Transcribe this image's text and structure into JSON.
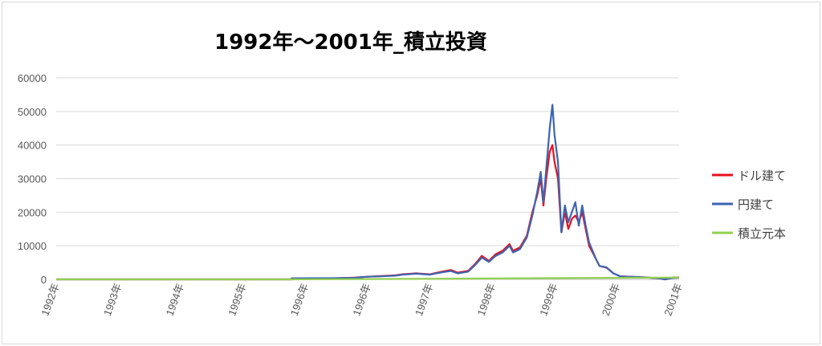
{
  "chart_data": {
    "type": "line",
    "title": "1992年～2001年_積立投資",
    "xlabel": "",
    "ylabel": "",
    "ylim": [
      0,
      60000
    ],
    "yticks": [
      "0",
      "10000",
      "20000",
      "30000",
      "40000",
      "50000",
      "60000"
    ],
    "xticks": [
      "1992年",
      "1993年",
      "1994年",
      "1995年",
      "1996年",
      "1996年",
      "1997年",
      "1998年",
      "1999年",
      "2000年",
      "2001年"
    ],
    "grid": true,
    "legend_position": "right",
    "x_unit": "year (1992.0 = first tick, 2001.0 = last tick)",
    "series": [
      {
        "name": "ドル建て",
        "color": "#e8101e",
        "points": [
          [
            1992.0,
            0
          ],
          [
            1995.4,
            0
          ],
          [
            1995.4,
            250
          ],
          [
            1996.0,
            300
          ],
          [
            1996.3,
            500
          ],
          [
            1996.5,
            800
          ],
          [
            1996.7,
            1000
          ],
          [
            1996.9,
            1200
          ],
          [
            1997.0,
            1500
          ],
          [
            1997.2,
            1800
          ],
          [
            1997.4,
            1500
          ],
          [
            1997.55,
            2200
          ],
          [
            1997.7,
            2800
          ],
          [
            1997.8,
            2000
          ],
          [
            1997.95,
            2500
          ],
          [
            1998.05,
            4500
          ],
          [
            1998.15,
            7000
          ],
          [
            1998.25,
            5500
          ],
          [
            1998.35,
            7500
          ],
          [
            1998.45,
            8500
          ],
          [
            1998.55,
            10500
          ],
          [
            1998.6,
            8500
          ],
          [
            1998.7,
            9500
          ],
          [
            1998.8,
            13000
          ],
          [
            1998.88,
            20000
          ],
          [
            1998.95,
            25000
          ],
          [
            1999.0,
            30000
          ],
          [
            1999.04,
            22000
          ],
          [
            1999.08,
            30000
          ],
          [
            1999.13,
            38000
          ],
          [
            1999.17,
            40000
          ],
          [
            1999.2,
            35000
          ],
          [
            1999.25,
            30000
          ],
          [
            1999.3,
            14000
          ],
          [
            1999.35,
            20000
          ],
          [
            1999.4,
            15000
          ],
          [
            1999.45,
            18000
          ],
          [
            1999.5,
            19000
          ],
          [
            1999.55,
            17000
          ],
          [
            1999.6,
            20000
          ],
          [
            1999.65,
            15000
          ],
          [
            1999.7,
            10000
          ],
          [
            1999.75,
            8000
          ],
          [
            1999.8,
            6000
          ],
          [
            1999.85,
            4000
          ],
          [
            1999.95,
            3500
          ],
          [
            2000.05,
            1800
          ],
          [
            2000.15,
            900
          ],
          [
            2000.3,
            800
          ],
          [
            2000.5,
            600
          ],
          [
            2000.7,
            300
          ],
          [
            2000.8,
            0
          ],
          [
            2000.9,
            500
          ],
          [
            2001.0,
            600
          ]
        ]
      },
      {
        "name": "円建て",
        "color": "#3c64b1",
        "points": [
          [
            1992.0,
            0
          ],
          [
            1995.4,
            0
          ],
          [
            1995.4,
            300
          ],
          [
            1996.0,
            350
          ],
          [
            1996.3,
            450
          ],
          [
            1996.5,
            800
          ],
          [
            1996.7,
            900
          ],
          [
            1996.9,
            1100
          ],
          [
            1997.0,
            1400
          ],
          [
            1997.2,
            1700
          ],
          [
            1997.4,
            1400
          ],
          [
            1997.55,
            2000
          ],
          [
            1997.7,
            2500
          ],
          [
            1997.8,
            1800
          ],
          [
            1997.95,
            2300
          ],
          [
            1998.05,
            4200
          ],
          [
            1998.15,
            6500
          ],
          [
            1998.25,
            5200
          ],
          [
            1998.35,
            7000
          ],
          [
            1998.45,
            8000
          ],
          [
            1998.55,
            10000
          ],
          [
            1998.6,
            8000
          ],
          [
            1998.7,
            9000
          ],
          [
            1998.8,
            12500
          ],
          [
            1998.88,
            19000
          ],
          [
            1998.95,
            26000
          ],
          [
            1999.0,
            32000
          ],
          [
            1999.04,
            23000
          ],
          [
            1999.08,
            33000
          ],
          [
            1999.13,
            45000
          ],
          [
            1999.17,
            52000
          ],
          [
            1999.2,
            43000
          ],
          [
            1999.25,
            35000
          ],
          [
            1999.3,
            14000
          ],
          [
            1999.35,
            22000
          ],
          [
            1999.4,
            17000
          ],
          [
            1999.45,
            20000
          ],
          [
            1999.5,
            23000
          ],
          [
            1999.55,
            16000
          ],
          [
            1999.6,
            22000
          ],
          [
            1999.65,
            16000
          ],
          [
            1999.7,
            11000
          ],
          [
            1999.75,
            8500
          ],
          [
            1999.8,
            6000
          ],
          [
            1999.85,
            4000
          ],
          [
            1999.95,
            3600
          ],
          [
            2000.05,
            1800
          ],
          [
            2000.15,
            900
          ],
          [
            2000.3,
            800
          ],
          [
            2000.5,
            600
          ],
          [
            2000.7,
            300
          ],
          [
            2000.8,
            0
          ],
          [
            2000.9,
            400
          ],
          [
            2001.0,
            500
          ]
        ]
      },
      {
        "name": "積立元本",
        "color": "#92d050",
        "points": [
          [
            1992.0,
            0
          ],
          [
            1995.4,
            0
          ],
          [
            1996.0,
            50
          ],
          [
            1997.0,
            150
          ],
          [
            1998.0,
            250
          ],
          [
            1999.0,
            350
          ],
          [
            2000.0,
            450
          ],
          [
            2001.0,
            550
          ]
        ]
      }
    ]
  }
}
